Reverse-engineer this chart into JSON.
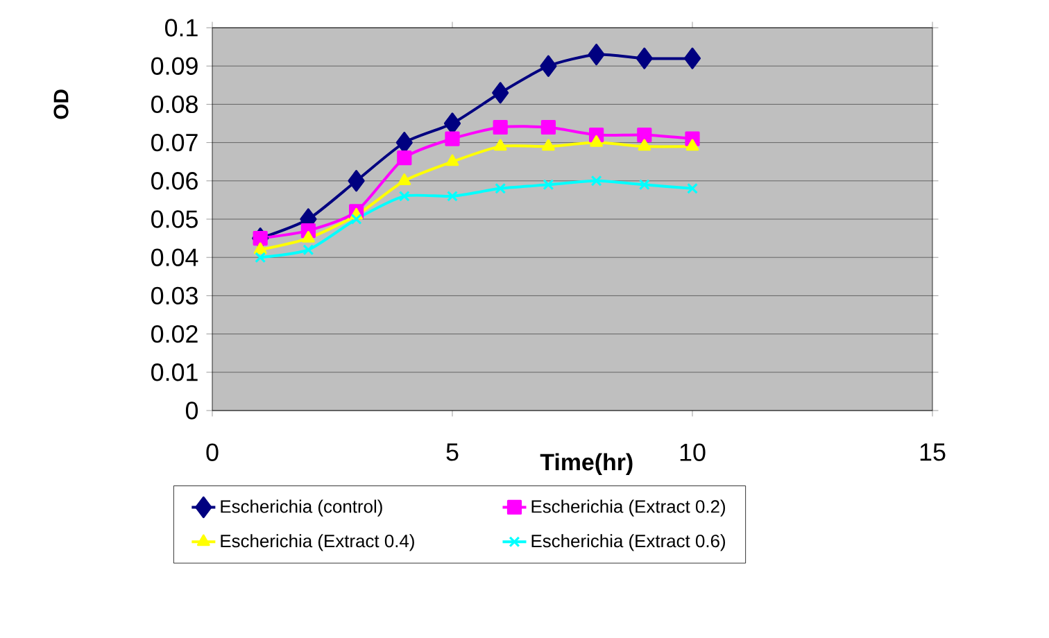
{
  "chart_data": {
    "type": "line",
    "ylabel": "OD",
    "xlabel": "Time(hr)",
    "x": [
      1,
      2,
      3,
      4,
      5,
      6,
      7,
      8,
      9,
      10
    ],
    "xlim": [
      0,
      15
    ],
    "xticks": [
      0,
      5,
      10,
      15
    ],
    "ylim": [
      0,
      0.1
    ],
    "yticks": [
      0,
      0.01,
      0.02,
      0.03,
      0.04,
      0.05,
      0.06,
      0.07,
      0.08,
      0.09,
      0.1
    ],
    "grid": "y",
    "legend": "bottom",
    "series": [
      {
        "name": "Escherichia (control)",
        "color": "#000080",
        "marker": "diamond",
        "values": [
          0.045,
          0.05,
          0.06,
          0.07,
          0.075,
          0.083,
          0.09,
          0.093,
          0.092,
          0.092
        ]
      },
      {
        "name": "Escherichia (Extract 0.2)",
        "color": "#ff00ff",
        "marker": "square",
        "values": [
          0.045,
          0.047,
          0.052,
          0.066,
          0.071,
          0.074,
          0.074,
          0.072,
          0.072,
          0.071
        ]
      },
      {
        "name": "Escherichia (Extract 0.4)",
        "color": "#ffff00",
        "marker": "triangle",
        "values": [
          0.042,
          0.045,
          0.051,
          0.06,
          0.065,
          0.069,
          0.069,
          0.07,
          0.069,
          0.069
        ]
      },
      {
        "name": "Escherichia (Extract 0.6)",
        "color": "#00ffff",
        "marker": "cross",
        "values": [
          0.04,
          0.042,
          0.05,
          0.056,
          0.056,
          0.058,
          0.059,
          0.06,
          0.059,
          0.058
        ]
      }
    ]
  }
}
